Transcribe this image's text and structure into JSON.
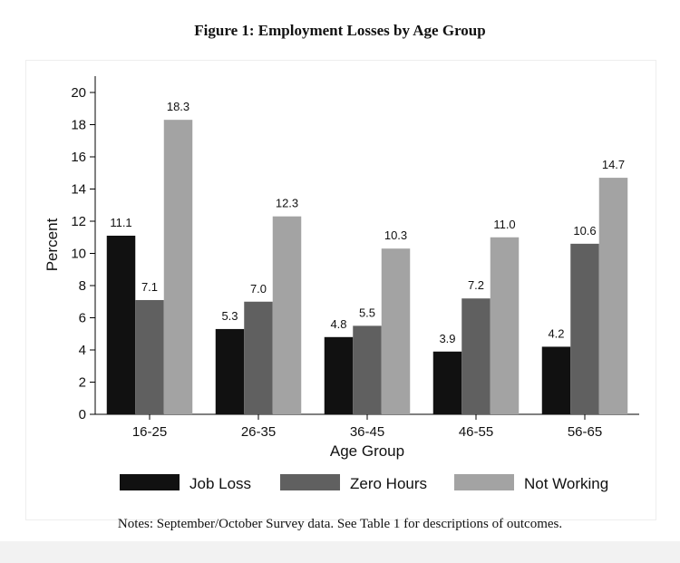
{
  "figure": {
    "title": "Figure 1: Employment Losses by Age Group",
    "notes": "Notes: September/October Survey data. See Table 1 for descriptions of outcomes."
  },
  "chart_data": {
    "type": "bar",
    "categories": [
      "16-25",
      "26-35",
      "36-45",
      "46-55",
      "56-65"
    ],
    "series": [
      {
        "name": "Job Loss",
        "color": "#111111",
        "values": [
          11.1,
          5.3,
          4.8,
          3.9,
          4.2
        ],
        "labels": [
          "11.1",
          "5.3",
          "4.8",
          "3.9",
          "4.2"
        ]
      },
      {
        "name": "Zero Hours",
        "color": "#606060",
        "values": [
          7.1,
          7.0,
          5.5,
          7.2,
          10.6
        ],
        "labels": [
          "7.1",
          "7.0",
          "5.5",
          "7.2",
          "10.6"
        ]
      },
      {
        "name": "Not Working",
        "color": "#a3a3a3",
        "values": [
          18.3,
          12.3,
          10.3,
          11.0,
          14.7
        ],
        "labels": [
          "18.3",
          "12.3",
          "10.3",
          "11.0",
          "14.7"
        ]
      }
    ],
    "xlabel": "Age Group",
    "ylabel": "Percent",
    "ylim": [
      0,
      20
    ],
    "yticks": [
      0,
      2,
      4,
      6,
      8,
      10,
      12,
      14,
      16,
      18,
      20
    ],
    "legend_position": "bottom",
    "grid": false
  }
}
